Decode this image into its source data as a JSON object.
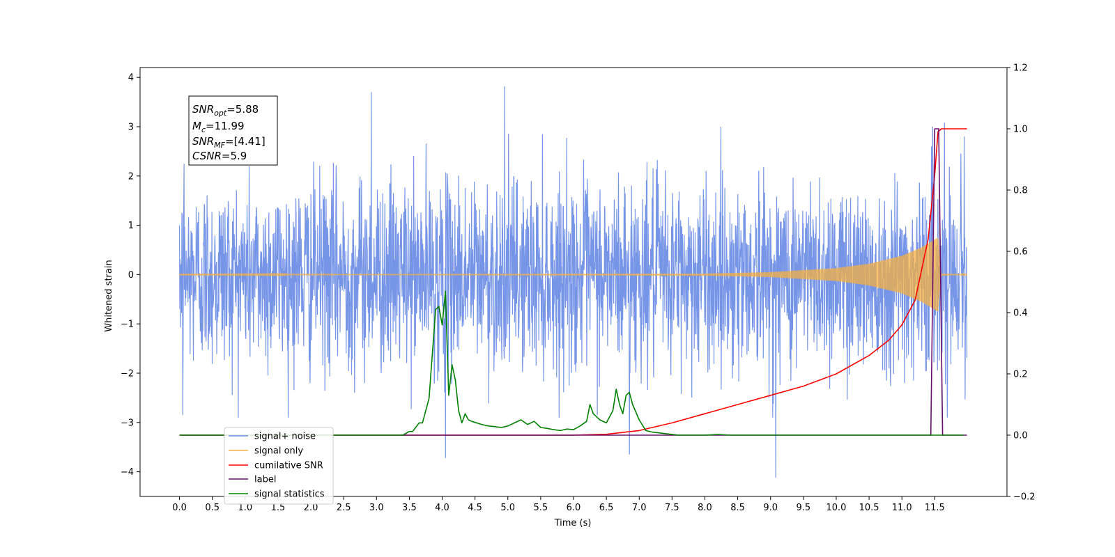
{
  "chart_data": {
    "type": "line",
    "title": "",
    "xlabel": "Time (s)",
    "ylabel": "Whitened strain",
    "ylabel_right": "",
    "xlim": [
      -0.6,
      12.6
    ],
    "ylim": [
      -4.5,
      4.2
    ],
    "ylim_right": [
      -0.2,
      1.2
    ],
    "x_ticks": [
      0.0,
      0.5,
      1.0,
      1.5,
      2.0,
      2.5,
      3.0,
      3.5,
      4.0,
      4.5,
      5.0,
      5.5,
      6.0,
      6.5,
      7.0,
      7.5,
      8.0,
      8.5,
      9.0,
      9.5,
      10.0,
      10.5,
      11.0,
      11.5
    ],
    "x_tick_labels": [
      "0.0",
      "0.5",
      "1.0",
      "1.5",
      "2.0",
      "2.5",
      "3.0",
      "3.5",
      "4.0",
      "4.5",
      "5.0",
      "5.5",
      "6.0",
      "6.5",
      "7.0",
      "7.5",
      "8.0",
      "8.5",
      "9.0",
      "9.5",
      "10.0",
      "10.5",
      "11.0",
      "11.5"
    ],
    "y_ticks": [
      4,
      3,
      2,
      1,
      0,
      -1,
      -2,
      -3,
      -4
    ],
    "y_tick_labels": [
      "4",
      "3",
      "2",
      "1",
      "0",
      "−1",
      "−2",
      "−3",
      "−4"
    ],
    "y_right_ticks": [
      1.2,
      1.0,
      0.8,
      0.6,
      0.4,
      0.2,
      0.0,
      -0.2
    ],
    "y_right_tick_labels": [
      "1.2",
      "1.0",
      "0.8",
      "0.6",
      "0.4",
      "0.2",
      "0.0",
      "−0.2"
    ],
    "grid": false,
    "legend_position": "lower-left",
    "annotation": {
      "snr_opt": "SNR",
      "snr_opt_sub": "opt",
      "snr_opt_value": "=5.88",
      "mc": "M",
      "mc_sub": "c",
      "mc_value": "=11.99",
      "snr_mf": "SNR",
      "snr_mf_sub": "MF",
      "snr_mf_value": "=[4.41]",
      "csnr": "CSNR",
      "csnr_value": "=5.9"
    },
    "series": [
      {
        "name": "signal+ noise",
        "color": "#6f8fe6",
        "axis": "left",
        "description_values": {
          "x_start": 0.0,
          "x_end": 11.99,
          "std": 0.95,
          "min": -4.1,
          "max": 3.82
        },
        "spikes": [
          [
            0.0,
            1.0
          ],
          [
            0.05,
            -2.85
          ],
          [
            0.07,
            2.25
          ],
          [
            2.92,
            3.7
          ],
          [
            4.05,
            -3.72
          ],
          [
            4.95,
            3.82
          ],
          [
            6.85,
            -3.65
          ],
          [
            9.08,
            -4.12
          ],
          [
            11.45,
            2.6
          ],
          [
            11.65,
            3.08
          ],
          [
            11.95,
            2.8
          ]
        ]
      },
      {
        "name": "signal only",
        "color": "#f5b041",
        "axis": "left",
        "envelope": [
          [
            0.0,
            0.005
          ],
          [
            8.0,
            0.02
          ],
          [
            9.0,
            0.05
          ],
          [
            10.0,
            0.13
          ],
          [
            10.5,
            0.22
          ],
          [
            11.0,
            0.38
          ],
          [
            11.3,
            0.55
          ],
          [
            11.55,
            0.75
          ],
          [
            11.6,
            0.02
          ],
          [
            11.99,
            0.005
          ]
        ]
      },
      {
        "name": "cumilative SNR",
        "color": "#ff0000",
        "axis": "right",
        "x": [
          0.0,
          6.0,
          6.5,
          7.0,
          7.5,
          8.0,
          8.5,
          9.0,
          9.5,
          10.0,
          10.5,
          10.8,
          11.0,
          11.2,
          11.4,
          11.5,
          11.55,
          11.6,
          11.99
        ],
        "values": [
          0.0,
          0.0,
          0.003,
          0.015,
          0.04,
          0.07,
          0.1,
          0.13,
          0.16,
          0.2,
          0.26,
          0.31,
          0.36,
          0.44,
          0.64,
          0.85,
          0.99,
          1.0,
          1.0
        ]
      },
      {
        "name": "label",
        "color": "#6a0d6a",
        "axis": "right",
        "x": [
          0.0,
          11.44,
          11.5,
          11.56,
          11.62,
          11.99
        ],
        "values": [
          0.0,
          0.0,
          1.0,
          1.0,
          0.0,
          0.0
        ]
      },
      {
        "name": "signal statistics",
        "color": "#008000",
        "axis": "right",
        "x": [
          0.0,
          3.4,
          3.5,
          3.55,
          3.65,
          3.7,
          3.8,
          3.9,
          3.95,
          4.0,
          4.05,
          4.1,
          4.15,
          4.2,
          4.25,
          4.3,
          4.35,
          4.4,
          4.45,
          4.6,
          4.7,
          4.8,
          4.9,
          5.0,
          5.1,
          5.2,
          5.3,
          5.4,
          5.5,
          5.6,
          5.7,
          5.8,
          5.9,
          6.0,
          6.1,
          6.2,
          6.25,
          6.3,
          6.4,
          6.5,
          6.6,
          6.65,
          6.7,
          6.75,
          6.8,
          6.85,
          6.9,
          7.0,
          7.1,
          7.2,
          7.4,
          7.6,
          8.0,
          8.2,
          8.4,
          11.94
        ],
        "values": [
          0.0,
          0.0,
          0.012,
          0.012,
          0.04,
          0.04,
          0.12,
          0.41,
          0.42,
          0.36,
          0.47,
          0.13,
          0.23,
          0.18,
          0.08,
          0.04,
          0.07,
          0.05,
          0.045,
          0.035,
          0.03,
          0.028,
          0.025,
          0.03,
          0.04,
          0.05,
          0.035,
          0.045,
          0.025,
          0.022,
          0.018,
          0.015,
          0.02,
          0.018,
          0.03,
          0.045,
          0.1,
          0.07,
          0.05,
          0.04,
          0.08,
          0.15,
          0.1,
          0.07,
          0.13,
          0.14,
          0.1,
          0.05,
          0.015,
          0.01,
          0.005,
          0.0,
          0.0,
          0.002,
          0.0,
          0.0
        ]
      }
    ]
  }
}
